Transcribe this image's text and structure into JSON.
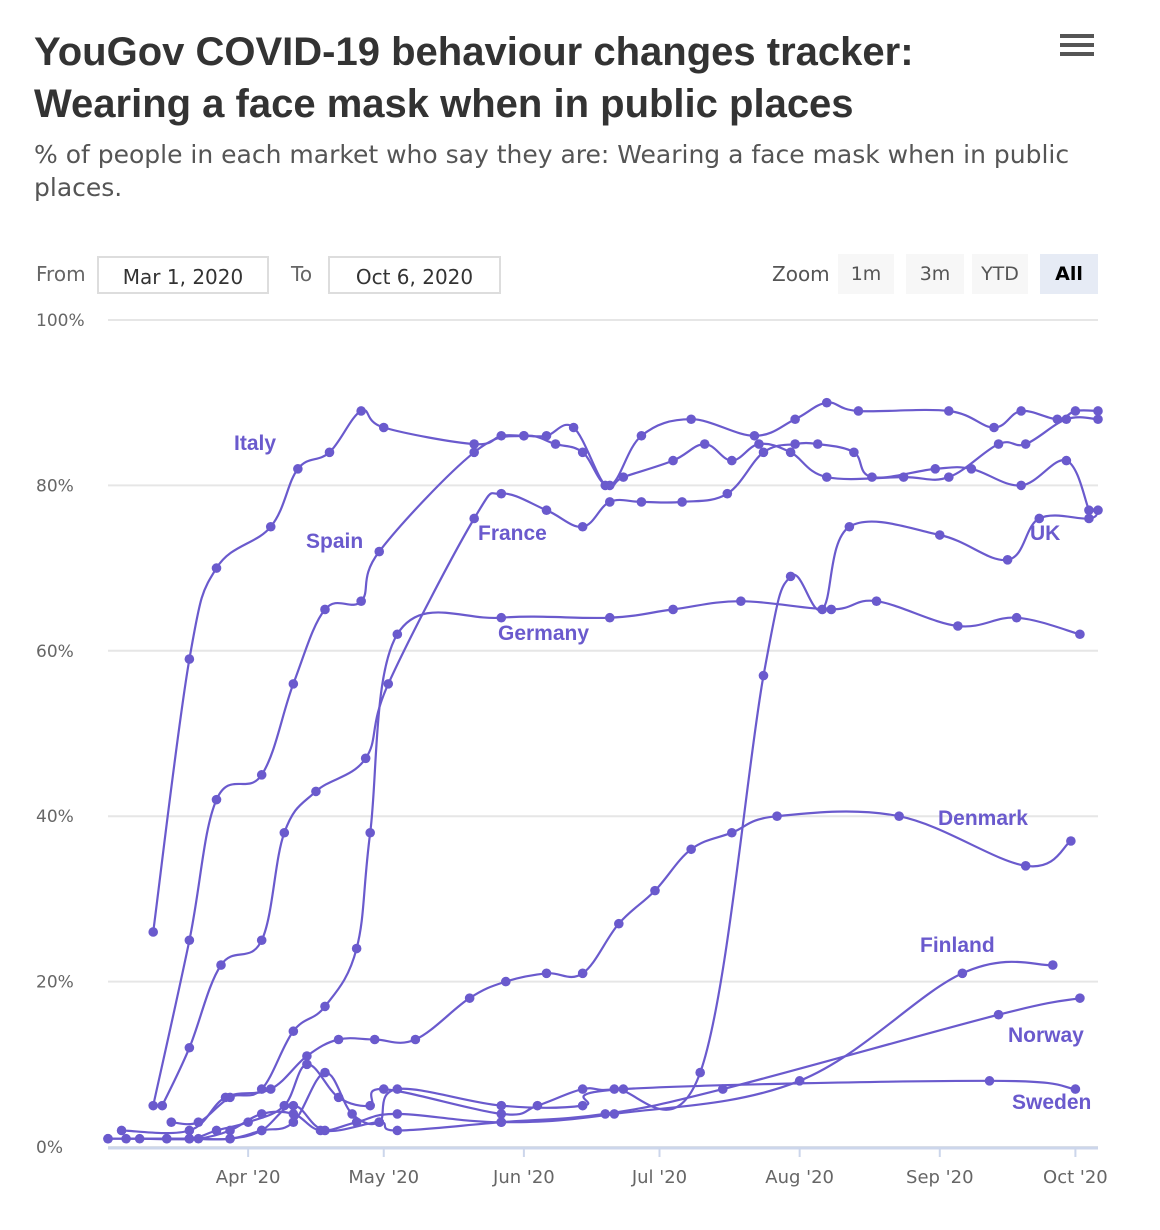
{
  "header": {
    "title": "YouGov COVID-19 behaviour changes tracker: Wearing a face mask when in public places",
    "subtitle": "% of people in each market who say they are: Wearing a face mask when in public places."
  },
  "range_selector": {
    "from_label": "From",
    "from_value": "Mar 1, 2020",
    "to_label": "To",
    "to_value": "Oct 6, 2020"
  },
  "zoom": {
    "label": "Zoom",
    "buttons": [
      "1m",
      "3m",
      "YTD",
      "All"
    ],
    "active": "All"
  },
  "menu_icon": "hamburger-menu-icon",
  "colors": {
    "series": "#6a5acd",
    "grid": "#e6e6e6",
    "axis": "#ccd6eb"
  },
  "chart_data": {
    "type": "line",
    "ylim": [
      0,
      100
    ],
    "yticks": [
      0,
      20,
      40,
      60,
      80,
      100
    ],
    "ytick_labels": [
      "0%",
      "20%",
      "40%",
      "60%",
      "80%",
      "100%"
    ],
    "xlim": [
      "2020-03-01",
      "2020-10-06"
    ],
    "xticks": [
      "2020-04-01",
      "2020-05-01",
      "2020-06-01",
      "2020-07-01",
      "2020-08-01",
      "2020-09-01",
      "2020-10-01"
    ],
    "xtick_labels": [
      "Apr '20",
      "May '20",
      "Jun '20",
      "Jul '20",
      "Aug '20",
      "Sep '20",
      "Oct '20"
    ],
    "grid": true,
    "series": [
      {
        "name": "Italy",
        "points": [
          [
            "2020-03-11",
            26
          ],
          [
            "2020-03-19",
            59
          ],
          [
            "2020-03-25",
            70
          ],
          [
            "2020-04-06",
            75
          ],
          [
            "2020-04-12",
            82
          ],
          [
            "2020-04-19",
            84
          ],
          [
            "2020-04-26",
            89
          ],
          [
            "2020-05-01",
            87
          ],
          [
            "2020-05-21",
            85
          ],
          [
            "2020-05-27",
            86
          ],
          [
            "2020-06-01",
            86
          ],
          [
            "2020-06-06",
            86
          ],
          [
            "2020-06-12",
            87
          ],
          [
            "2020-06-19",
            80
          ],
          [
            "2020-06-23",
            81
          ],
          [
            "2020-07-04",
            83
          ],
          [
            "2020-07-11",
            85
          ],
          [
            "2020-07-17",
            83
          ],
          [
            "2020-07-23",
            85
          ],
          [
            "2020-07-30",
            84
          ],
          [
            "2020-08-07",
            81
          ],
          [
            "2020-08-24",
            81
          ],
          [
            "2020-09-03",
            81
          ],
          [
            "2020-09-14",
            85
          ],
          [
            "2020-09-20",
            85
          ],
          [
            "2020-09-29",
            88
          ],
          [
            "2020-10-06",
            88
          ]
        ]
      },
      {
        "name": "Spain",
        "points": [
          [
            "2020-03-11",
            5
          ],
          [
            "2020-03-19",
            25
          ],
          [
            "2020-03-25",
            42
          ],
          [
            "2020-04-04",
            45
          ],
          [
            "2020-04-11",
            56
          ],
          [
            "2020-04-18",
            65
          ],
          [
            "2020-04-26",
            66
          ],
          [
            "2020-04-30",
            72
          ],
          [
            "2020-05-21",
            84
          ],
          [
            "2020-06-01",
            86
          ],
          [
            "2020-06-08",
            85
          ],
          [
            "2020-06-14",
            84
          ],
          [
            "2020-06-20",
            80
          ],
          [
            "2020-06-27",
            86
          ],
          [
            "2020-07-08",
            88
          ],
          [
            "2020-07-22",
            86
          ],
          [
            "2020-07-31",
            88
          ],
          [
            "2020-08-07",
            90
          ],
          [
            "2020-08-14",
            89
          ],
          [
            "2020-09-03",
            89
          ],
          [
            "2020-09-13",
            87
          ],
          [
            "2020-09-19",
            89
          ],
          [
            "2020-09-27",
            88
          ],
          [
            "2020-10-01",
            89
          ],
          [
            "2020-10-06",
            89
          ]
        ]
      },
      {
        "name": "France",
        "points": [
          [
            "2020-03-13",
            5
          ],
          [
            "2020-03-19",
            12
          ],
          [
            "2020-03-26",
            22
          ],
          [
            "2020-04-04",
            25
          ],
          [
            "2020-04-09",
            38
          ],
          [
            "2020-04-16",
            43
          ],
          [
            "2020-04-27",
            47
          ],
          [
            "2020-05-02",
            56
          ],
          [
            "2020-05-21",
            76
          ],
          [
            "2020-05-27",
            79
          ],
          [
            "2020-06-06",
            77
          ],
          [
            "2020-06-14",
            75
          ],
          [
            "2020-06-20",
            78
          ],
          [
            "2020-06-27",
            78
          ],
          [
            "2020-07-06",
            78
          ],
          [
            "2020-07-16",
            79
          ],
          [
            "2020-07-24",
            84
          ],
          [
            "2020-07-31",
            85
          ],
          [
            "2020-08-05",
            85
          ],
          [
            "2020-08-13",
            84
          ],
          [
            "2020-08-17",
            81
          ],
          [
            "2020-08-31",
            82
          ],
          [
            "2020-09-08",
            82
          ],
          [
            "2020-09-19",
            80
          ],
          [
            "2020-09-29",
            83
          ],
          [
            "2020-10-04",
            77
          ]
        ]
      },
      {
        "name": "Germany",
        "points": [
          [
            "2020-03-15",
            3
          ],
          [
            "2020-03-21",
            3
          ],
          [
            "2020-03-28",
            6
          ],
          [
            "2020-04-04",
            7
          ],
          [
            "2020-04-11",
            14
          ],
          [
            "2020-04-18",
            17
          ],
          [
            "2020-04-25",
            24
          ],
          [
            "2020-04-28",
            38
          ],
          [
            "2020-05-04",
            62
          ],
          [
            "2020-05-27",
            64
          ],
          [
            "2020-06-20",
            64
          ],
          [
            "2020-07-04",
            65
          ],
          [
            "2020-07-19",
            66
          ],
          [
            "2020-08-08",
            65
          ],
          [
            "2020-08-18",
            66
          ],
          [
            "2020-09-05",
            63
          ],
          [
            "2020-09-18",
            64
          ],
          [
            "2020-10-02",
            62
          ]
        ]
      },
      {
        "name": "UK",
        "points": [
          [
            "2020-03-01",
            1
          ],
          [
            "2020-03-08",
            1
          ],
          [
            "2020-03-19",
            1
          ],
          [
            "2020-03-25",
            2
          ],
          [
            "2020-04-01",
            3
          ],
          [
            "2020-04-09",
            5
          ],
          [
            "2020-04-14",
            10
          ],
          [
            "2020-04-21",
            6
          ],
          [
            "2020-04-28",
            5
          ],
          [
            "2020-05-01",
            7
          ],
          [
            "2020-05-27",
            4
          ],
          [
            "2020-06-04",
            5
          ],
          [
            "2020-06-14",
            7
          ],
          [
            "2020-06-21",
            7
          ],
          [
            "2020-07-10",
            9
          ],
          [
            "2020-07-24",
            57
          ],
          [
            "2020-07-30",
            69
          ],
          [
            "2020-08-06",
            65
          ],
          [
            "2020-08-12",
            75
          ],
          [
            "2020-09-01",
            74
          ],
          [
            "2020-09-16",
            71
          ],
          [
            "2020-09-23",
            76
          ],
          [
            "2020-10-04",
            76
          ],
          [
            "2020-10-06",
            77
          ]
        ]
      },
      {
        "name": "Denmark",
        "points": [
          [
            "2020-03-04",
            2
          ],
          [
            "2020-03-19",
            2
          ],
          [
            "2020-03-27",
            6
          ],
          [
            "2020-04-06",
            7
          ],
          [
            "2020-04-14",
            11
          ],
          [
            "2020-04-21",
            13
          ],
          [
            "2020-04-29",
            13
          ],
          [
            "2020-05-08",
            13
          ],
          [
            "2020-05-20",
            18
          ],
          [
            "2020-05-28",
            20
          ],
          [
            "2020-06-06",
            21
          ],
          [
            "2020-06-14",
            21
          ],
          [
            "2020-06-22",
            27
          ],
          [
            "2020-06-30",
            31
          ],
          [
            "2020-07-08",
            36
          ],
          [
            "2020-07-17",
            38
          ],
          [
            "2020-07-27",
            40
          ],
          [
            "2020-08-23",
            40
          ],
          [
            "2020-09-20",
            34
          ],
          [
            "2020-09-30",
            37
          ]
        ]
      },
      {
        "name": "Finland",
        "points": [
          [
            "2020-03-01",
            1
          ],
          [
            "2020-03-14",
            1
          ],
          [
            "2020-03-21",
            1
          ],
          [
            "2020-03-28",
            2
          ],
          [
            "2020-04-04",
            4
          ],
          [
            "2020-04-11",
            4
          ],
          [
            "2020-04-17",
            2
          ],
          [
            "2020-04-25",
            3
          ],
          [
            "2020-05-04",
            4
          ],
          [
            "2020-05-27",
            3
          ],
          [
            "2020-06-21",
            4
          ],
          [
            "2020-08-01",
            8
          ],
          [
            "2020-09-06",
            21
          ],
          [
            "2020-09-26",
            22
          ]
        ]
      },
      {
        "name": "Norway",
        "points": [
          [
            "2020-03-14",
            1
          ],
          [
            "2020-03-19",
            1
          ],
          [
            "2020-03-28",
            1
          ],
          [
            "2020-04-04",
            2
          ],
          [
            "2020-04-11",
            5
          ],
          [
            "2020-04-18",
            2
          ],
          [
            "2020-04-30",
            3
          ],
          [
            "2020-05-04",
            2
          ],
          [
            "2020-05-27",
            3
          ],
          [
            "2020-06-19",
            4
          ],
          [
            "2020-07-15",
            7
          ],
          [
            "2020-09-14",
            16
          ],
          [
            "2020-10-02",
            18
          ]
        ]
      },
      {
        "name": "Sweden",
        "points": [
          [
            "2020-03-05",
            1
          ],
          [
            "2020-03-19",
            1
          ],
          [
            "2020-03-28",
            1
          ],
          [
            "2020-04-04",
            2
          ],
          [
            "2020-04-11",
            3
          ],
          [
            "2020-04-18",
            9
          ],
          [
            "2020-04-24",
            4
          ],
          [
            "2020-04-30",
            3
          ],
          [
            "2020-05-04",
            7
          ],
          [
            "2020-05-27",
            5
          ],
          [
            "2020-06-14",
            5
          ],
          [
            "2020-06-23",
            7
          ],
          [
            "2020-09-12",
            8
          ],
          [
            "2020-10-01",
            7
          ]
        ]
      }
    ]
  }
}
